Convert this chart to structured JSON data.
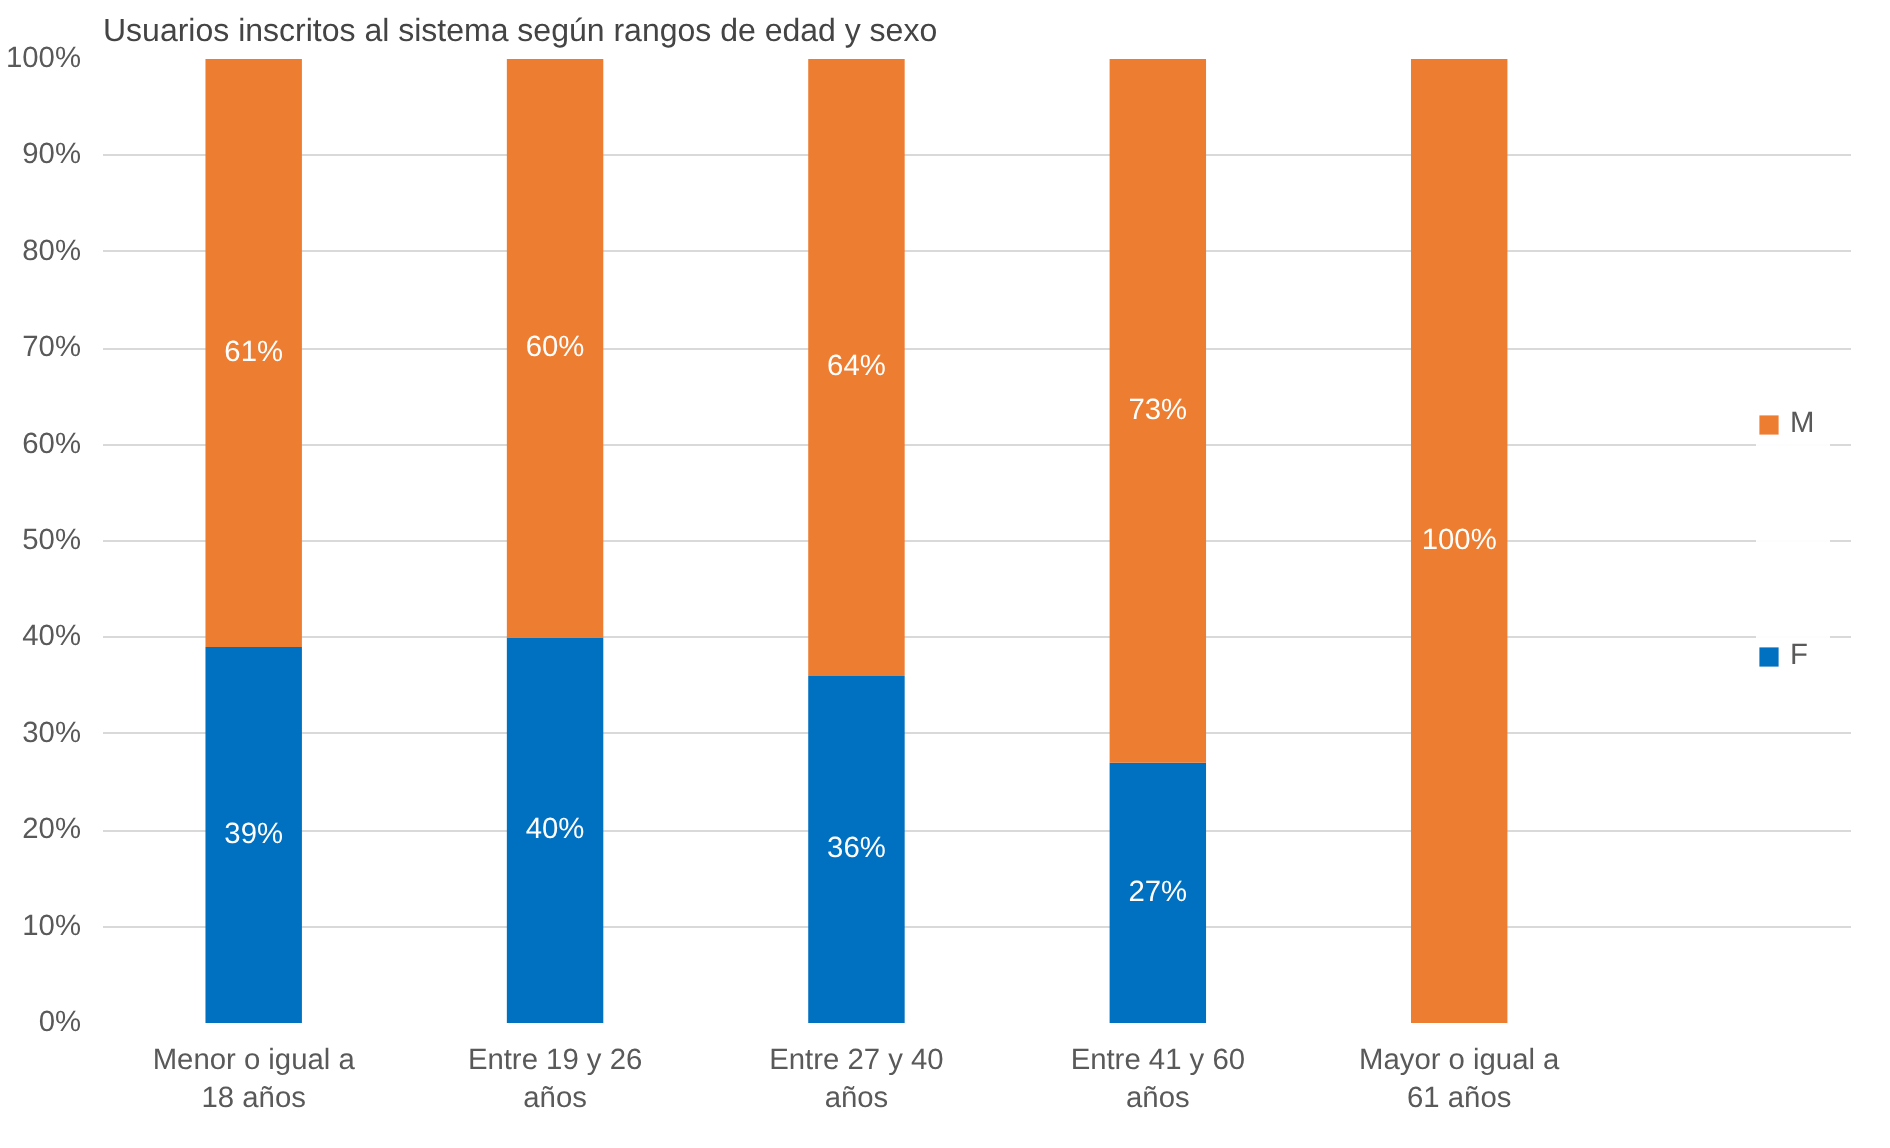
{
  "chart_data": {
    "type": "bar",
    "title": "Usuarios inscritos al sistema según rangos de edad y sexo",
    "stacked": true,
    "categories": [
      "Menor o igual a 18 años",
      "Entre 19 y 26 años",
      "Entre 27 y 40 años",
      "Entre 41 y 60 años",
      "Mayor o igual a 61 años"
    ],
    "series": [
      {
        "name": "F",
        "color": "#0070c0",
        "values": [
          39,
          40,
          36,
          27,
          0
        ],
        "value_labels": [
          "39%",
          "40%",
          "36%",
          "27%",
          null
        ]
      },
      {
        "name": "M",
        "color": "#ed7d31",
        "values": [
          61,
          60,
          64,
          73,
          100
        ],
        "value_labels": [
          "61%",
          "60%",
          "64%",
          "73%",
          "100%"
        ]
      }
    ],
    "ylim": [
      0,
      100
    ],
    "yticks": [
      {
        "value": 0,
        "label": "0%"
      },
      {
        "value": 10,
        "label": "10%"
      },
      {
        "value": 20,
        "label": "20%"
      },
      {
        "value": 30,
        "label": "30%"
      },
      {
        "value": 40,
        "label": "40%"
      },
      {
        "value": 50,
        "label": "50%"
      },
      {
        "value": 60,
        "label": "60%"
      },
      {
        "value": 70,
        "label": "70%"
      },
      {
        "value": 80,
        "label": "80%"
      },
      {
        "value": 90,
        "label": "90%"
      },
      {
        "value": 100,
        "label": "100%"
      }
    ],
    "grid": "y",
    "legend": "right"
  }
}
